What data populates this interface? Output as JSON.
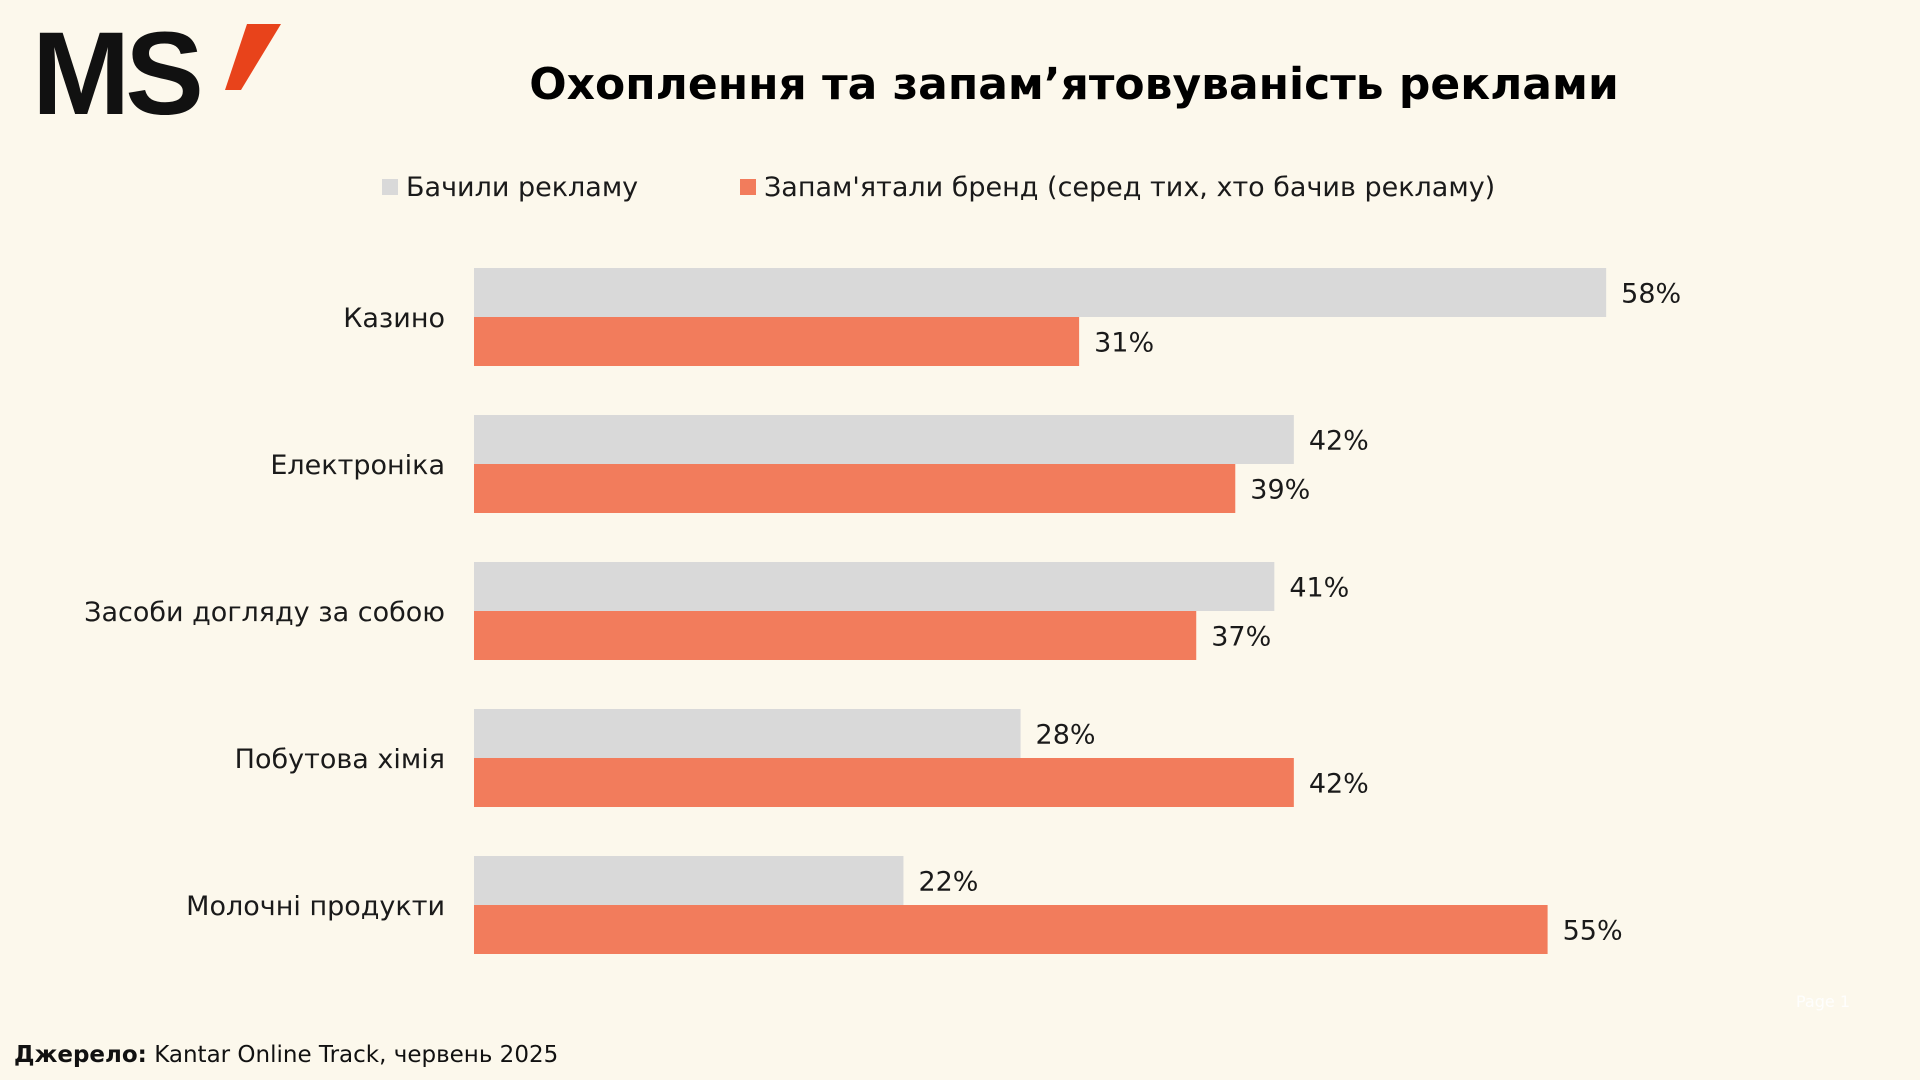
{
  "logo": {
    "text": "MS",
    "mark_color": "#E8431B"
  },
  "title": "Охоплення та запам’ятовуваність реклами",
  "legend": [
    {
      "label": "Бачили рекламу",
      "color": "#D9D9D9"
    },
    {
      "label": "Запам'ятали бренд (серед тих, хто бачив рекламу)",
      "color": "#F27C5C"
    }
  ],
  "source": {
    "label": "Джерело:",
    "text": "Kantar Online Track, червень 2025"
  },
  "page_marker": "Page 1",
  "chart_data": {
    "type": "bar",
    "orientation": "horizontal",
    "categories": [
      "Казино",
      "Електроніка",
      "Засоби догляду за собою",
      "Побутова хімія",
      "Молочні продукти"
    ],
    "series": [
      {
        "name": "Бачили рекламу",
        "color": "#D9D9D9",
        "values": [
          58,
          42,
          41,
          28,
          22
        ],
        "labels": [
          "58%",
          "42%",
          "41%",
          "28%",
          "22%"
        ]
      },
      {
        "name": "Запам'ятали бренд (серед тих, хто бачив рекламу)",
        "color": "#F27C5C",
        "values": [
          31,
          39,
          37,
          42,
          55
        ],
        "labels": [
          "31%",
          "39%",
          "37%",
          "42%",
          "55%"
        ]
      }
    ],
    "title": "Охоплення та запам’ятовуваність реклами",
    "value_unit": "%",
    "xlim": [
      0,
      58
    ],
    "grid": false,
    "legend_position": "top"
  }
}
